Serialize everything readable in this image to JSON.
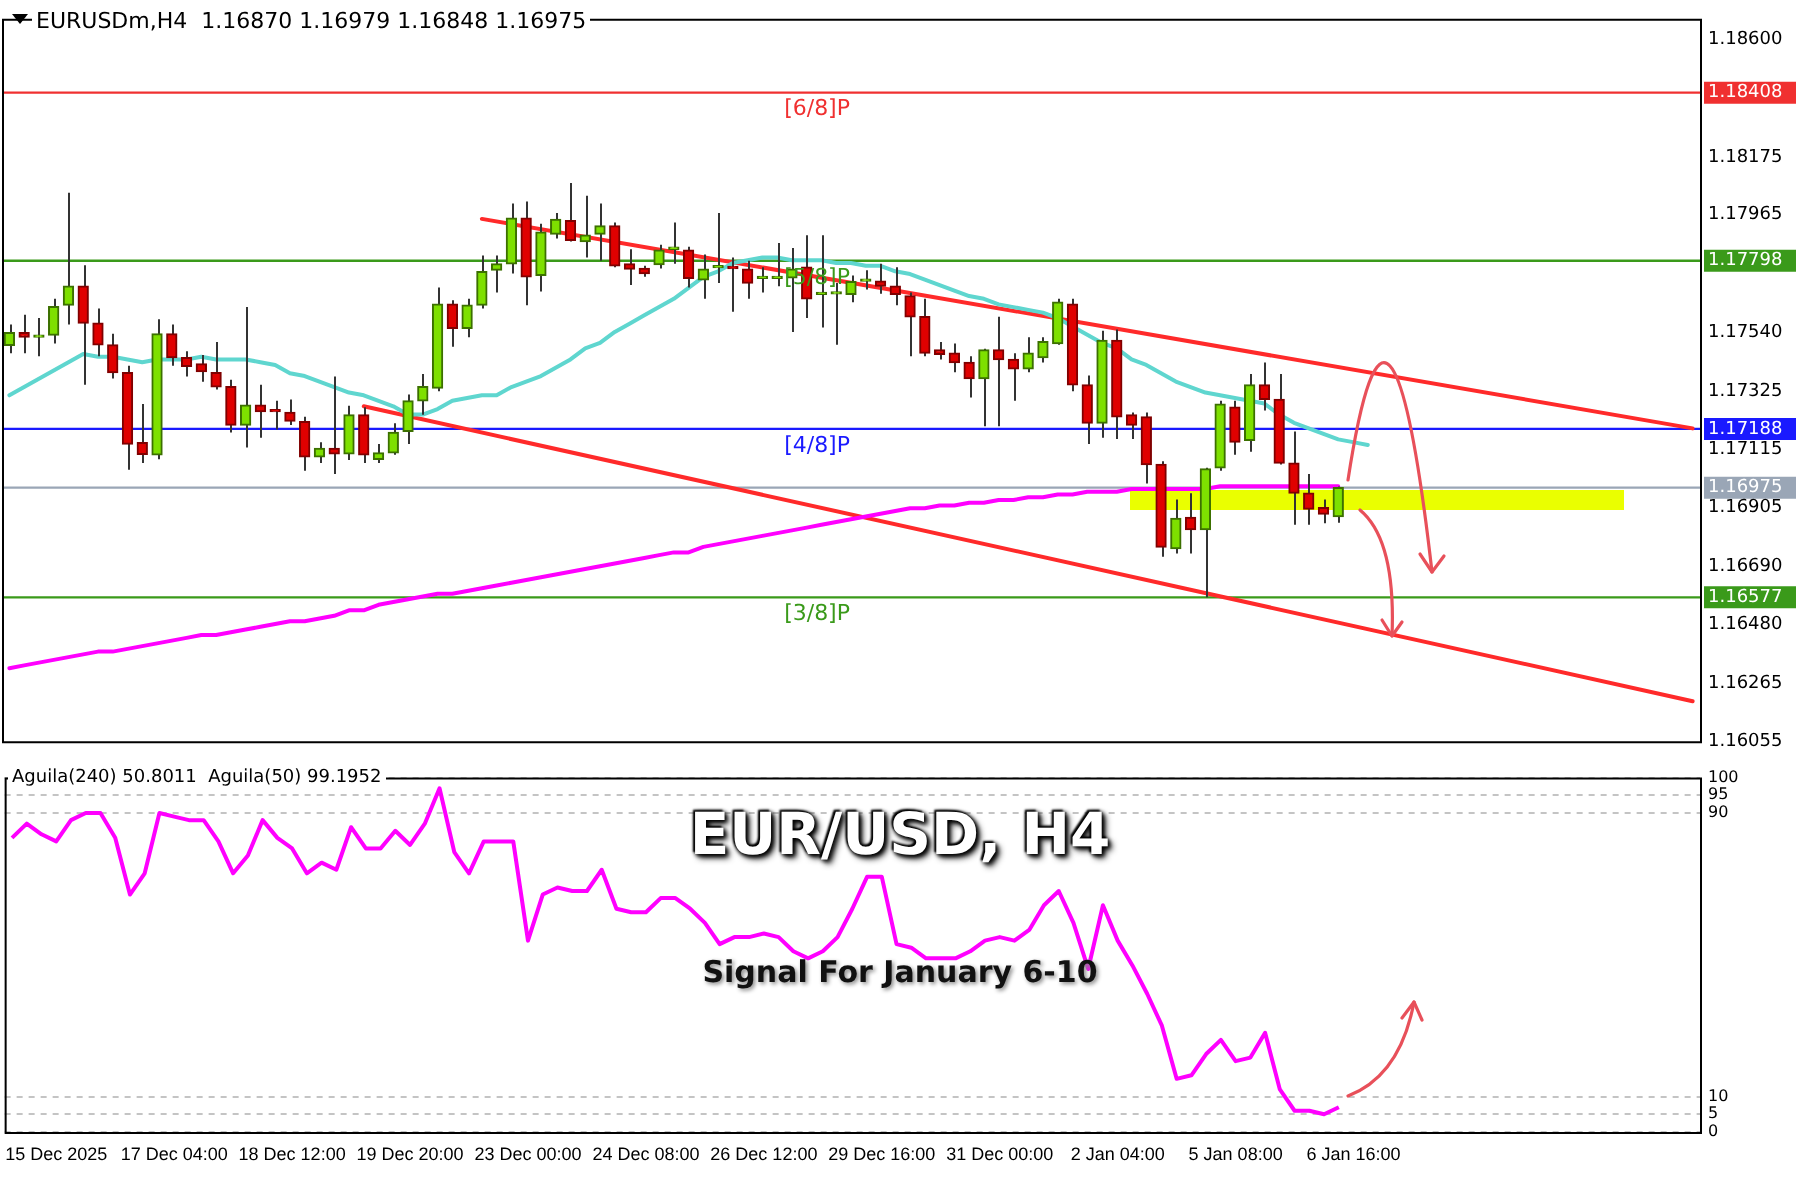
{
  "chart_data": [
    {
      "type": "candlestick",
      "title": "EURUSDm,H4  1.16870 1.16979 1.16848 1.16975",
      "categories": [
        null,
        null,
        null,
        null,
        null,
        null,
        null,
        null,
        null,
        null,
        null,
        null,
        null,
        null,
        null,
        null,
        null,
        null,
        null,
        null,
        null,
        null,
        null,
        null,
        null,
        null,
        null,
        null,
        null,
        null,
        null,
        null,
        null,
        null,
        null,
        null,
        null,
        null,
        null,
        null,
        null,
        null,
        null,
        null,
        null,
        null,
        null,
        null,
        null,
        null,
        null,
        null,
        null,
        null,
        null,
        null,
        null,
        null,
        null,
        null,
        null,
        null,
        null,
        null,
        null,
        null,
        null,
        null,
        null,
        null,
        null,
        null,
        null,
        null,
        null,
        null,
        null,
        null,
        null,
        null,
        null,
        null,
        null,
        null,
        null,
        null,
        null,
        null,
        null,
        null,
        null,
        null,
        null,
        null,
        null,
        null,
        null,
        null,
        null,
        null,
        null,
        null,
        null,
        null,
        null,
        null,
        null,
        null,
        null,
        null,
        null,
        null,
        null,
        null,
        null
      ],
      "ohlc": [
        [
          1.17491,
          1.17567,
          1.17463,
          1.17537
        ],
        [
          1.17537,
          1.17602,
          1.17463,
          1.17521
        ],
        [
          1.17521,
          1.1759,
          1.17452,
          1.17526
        ],
        [
          1.17528,
          1.1766,
          1.17498,
          1.17632
        ],
        [
          1.17637,
          1.18045,
          1.17567,
          1.17706
        ],
        [
          1.17706,
          1.17782,
          1.17348,
          1.17572
        ],
        [
          1.17572,
          1.17625,
          1.17452,
          1.17493
        ],
        [
          1.17493,
          1.17533,
          1.17371,
          1.17392
        ],
        [
          1.17392,
          1.17417,
          1.1704,
          1.17133
        ],
        [
          1.17138,
          1.17278,
          1.17064,
          1.17096
        ],
        [
          1.17094,
          1.17586,
          1.17078,
          1.17533
        ],
        [
          1.17533,
          1.17567,
          1.17417,
          1.17447
        ],
        [
          1.17447,
          1.1747,
          1.17378,
          1.17415
        ],
        [
          1.17424,
          1.17456,
          1.17359,
          1.17396
        ],
        [
          1.17392,
          1.17503,
          1.17331,
          1.17341
        ],
        [
          1.17341,
          1.17366,
          1.17175,
          1.17202
        ],
        [
          1.17202,
          1.1763,
          1.17121,
          1.17274
        ],
        [
          1.17274,
          1.17348,
          1.17156,
          1.17251
        ],
        [
          1.17253,
          1.1729,
          1.17186,
          1.17251
        ],
        [
          1.17248,
          1.17295,
          1.17202,
          1.17216
        ],
        [
          1.17214,
          1.17232,
          1.17036,
          1.17087
        ],
        [
          1.17087,
          1.1714,
          1.17064,
          1.17117
        ],
        [
          1.17117,
          1.17378,
          1.17024,
          1.17098
        ],
        [
          1.17098,
          1.17272,
          1.17075,
          1.17239
        ],
        [
          1.17239,
          1.17267,
          1.17064,
          1.17094
        ],
        [
          1.17078,
          1.17133,
          1.17064,
          1.17101
        ],
        [
          1.17101,
          1.17209,
          1.17094,
          1.17175
        ],
        [
          1.17179,
          1.17313,
          1.17133,
          1.1729
        ],
        [
          1.1729,
          1.17387,
          1.17239,
          1.17341
        ],
        [
          1.17336,
          1.17701,
          1.17325,
          1.17641
        ],
        [
          1.17641,
          1.17655,
          1.17486,
          1.17553
        ],
        [
          1.17553,
          1.1766,
          1.17521,
          1.17637
        ],
        [
          1.17637,
          1.17817,
          1.17625,
          1.17759
        ],
        [
          1.17764,
          1.17817,
          1.17683,
          1.17787
        ],
        [
          1.17787,
          1.18006,
          1.17752,
          1.17953
        ],
        [
          1.17953,
          1.18013,
          1.17637,
          1.1774
        ],
        [
          1.17745,
          1.17932,
          1.17687,
          1.17902
        ],
        [
          1.17895,
          1.17971,
          1.17879,
          1.17948
        ],
        [
          1.17944,
          1.1808,
          1.17868,
          1.17872
        ],
        [
          1.17868,
          1.18034,
          1.1781,
          1.17891
        ],
        [
          1.17895,
          1.18006,
          1.17798,
          1.17925
        ],
        [
          1.17925,
          1.17937,
          1.17775,
          1.1778
        ],
        [
          1.17787,
          1.1784,
          1.1771,
          1.17768
        ],
        [
          1.1777,
          1.1778,
          1.1774,
          1.17752
        ],
        [
          1.17784,
          1.17856,
          1.1777,
          1.17837
        ],
        [
          1.1784,
          1.17937,
          1.17787,
          1.17844
        ],
        [
          1.17837,
          1.17849,
          1.17701,
          1.17734
        ],
        [
          1.17729,
          1.17821,
          1.1766,
          1.17768
        ],
        [
          1.17773,
          1.17971,
          1.17717,
          1.17777
        ],
        [
          1.17775,
          1.1781,
          1.17613,
          1.1777
        ],
        [
          1.17768,
          1.17798,
          1.1766,
          1.17717
        ],
        [
          1.17734,
          1.17775,
          1.17683,
          1.17736
        ],
        [
          1.17734,
          1.17863,
          1.17706,
          1.17738
        ],
        [
          1.17736,
          1.17844,
          1.1754,
          1.17768
        ],
        [
          1.17775,
          1.17891,
          1.1759,
          1.1766
        ],
        [
          1.17676,
          1.17891,
          1.17556,
          1.17683
        ],
        [
          1.17678,
          1.17717,
          1.17493,
          1.17683
        ],
        [
          1.17676,
          1.17745,
          1.17648,
          1.17722
        ],
        [
          1.17724,
          1.17764,
          1.17694,
          1.17729
        ],
        [
          1.17724,
          1.17787,
          1.17678,
          1.17706
        ],
        [
          1.17706,
          1.17775,
          1.17637,
          1.17676
        ],
        [
          1.17671,
          1.17683,
          1.17452,
          1.17595
        ],
        [
          1.17595,
          1.1766,
          1.17452,
          1.17463
        ],
        [
          1.17475,
          1.17503,
          1.1744,
          1.17459
        ],
        [
          1.17463,
          1.17498,
          1.17394,
          1.17429
        ],
        [
          1.17429,
          1.17452,
          1.17302,
          1.17371
        ],
        [
          1.17371,
          1.17479,
          1.17198,
          1.17475
        ],
        [
          1.17475,
          1.17595,
          1.17198,
          1.1744
        ],
        [
          1.1744,
          1.17463,
          1.1729,
          1.17406
        ],
        [
          1.17406,
          1.17521,
          1.17394,
          1.17463
        ],
        [
          1.17447,
          1.17521,
          1.17429,
          1.17505
        ],
        [
          1.17498,
          1.1766,
          1.17493,
          1.17648
        ],
        [
          1.17641,
          1.1766,
          1.17325,
          1.17348
        ],
        [
          1.17348,
          1.17382,
          1.17133,
          1.17209
        ],
        [
          1.17209,
          1.17544,
          1.17156,
          1.17509
        ],
        [
          1.17509,
          1.17549,
          1.17151,
          1.17232
        ],
        [
          1.17239,
          1.17248,
          1.17151,
          1.17202
        ],
        [
          1.17232,
          1.17248,
          1.1699,
          1.17059
        ],
        [
          1.17059,
          1.17071,
          1.16724,
          1.16759
        ],
        [
          1.16754,
          1.16932,
          1.16736,
          1.16863
        ],
        [
          1.16867,
          1.16955,
          1.16736,
          1.16823
        ],
        [
          1.16823,
          1.17047,
          1.16577,
          1.17043
        ],
        [
          1.17047,
          1.1729,
          1.17036,
          1.17278
        ],
        [
          1.17267,
          1.1729,
          1.17094,
          1.1714
        ],
        [
          1.17147,
          1.17387,
          1.17105,
          1.17348
        ],
        [
          1.17348,
          1.17429,
          1.17255,
          1.17295
        ],
        [
          1.17295,
          1.17387,
          1.17059,
          1.17064
        ],
        [
          1.17064,
          1.17179,
          1.1684,
          1.16955
        ],
        [
          1.16955,
          1.17024,
          1.1684,
          1.16897
        ],
        [
          1.16902,
          1.16932,
          1.16846,
          1.16879
        ],
        [
          1.1687,
          1.16979,
          1.16848,
          1.16975
        ],
        null,
        null,
        null,
        null,
        null,
        null,
        null,
        null,
        null,
        null,
        null,
        null,
        null,
        null,
        null,
        null,
        null,
        null,
        null,
        null,
        null,
        null,
        null,
        null
      ],
      "series": [
        {
          "type": "line",
          "color": "#5fd6cf",
          "values": [
            1.1731,
            1.1734,
            1.1737,
            1.174,
            1.1743,
            1.1746,
            1.1745,
            1.1745,
            1.1744,
            1.1743,
            1.1744,
            1.1744,
            1.1744,
            1.1745,
            1.1744,
            1.1744,
            1.1744,
            1.1743,
            1.1742,
            1.1739,
            1.1738,
            1.1736,
            1.1734,
            1.1732,
            1.1731,
            1.1729,
            1.1727,
            1.1724,
            1.1724,
            1.1726,
            1.1729,
            1.173,
            1.1731,
            1.1731,
            1.1734,
            1.1736,
            1.1738,
            1.1741,
            1.1744,
            1.1748,
            1.175,
            1.1754,
            1.1757,
            1.176,
            1.1763,
            1.1766,
            1.177,
            1.1774,
            1.1776,
            1.1779,
            1.178,
            1.1781,
            1.1781,
            1.178,
            1.178,
            1.178,
            1.1779,
            1.1779,
            1.1778,
            1.1778,
            1.1776,
            1.1775,
            1.1773,
            1.1771,
            1.1769,
            1.1767,
            1.1766,
            1.1764,
            1.1763,
            1.1762,
            1.1761,
            1.1759,
            1.1756,
            1.1753,
            1.175,
            1.1748,
            1.1744,
            1.1742,
            1.1739,
            1.1736,
            1.1734,
            1.1732,
            1.1731,
            1.173,
            1.1729,
            1.1728,
            1.1724,
            1.1721,
            1.1719,
            1.1717,
            1.1715,
            1.1714,
            1.1713,
            null,
            null,
            null,
            null,
            null,
            null,
            null,
            null,
            null,
            null,
            null,
            null,
            null,
            null,
            null,
            null,
            null,
            null,
            null,
            null,
            null,
            null
          ]
        },
        {
          "type": "line",
          "color": "#ff00ff",
          "values": [
            1.1632,
            1.1633,
            1.1634,
            1.1635,
            1.1636,
            1.1637,
            1.1638,
            1.1638,
            1.1639,
            1.164,
            1.1641,
            1.1642,
            1.1643,
            1.1644,
            1.1644,
            1.1645,
            1.1646,
            1.1647,
            1.1648,
            1.1649,
            1.1649,
            1.165,
            1.1651,
            1.1653,
            1.1653,
            1.1655,
            1.1656,
            1.1657,
            1.1658,
            1.1659,
            1.1659,
            1.166,
            1.1661,
            1.1662,
            1.1663,
            1.1664,
            1.1665,
            1.1666,
            1.1667,
            1.1668,
            1.1669,
            1.167,
            1.1671,
            1.1672,
            1.1673,
            1.1674,
            1.1674,
            1.1676,
            1.1677,
            1.1678,
            1.1679,
            1.168,
            1.1681,
            1.1682,
            1.1683,
            1.1684,
            1.1685,
            1.1686,
            1.1687,
            1.1688,
            1.1689,
            1.169,
            1.169,
            1.1691,
            1.1691,
            1.1692,
            1.1692,
            1.1693,
            1.1693,
            1.1694,
            1.1694,
            1.1695,
            1.1695,
            1.1696,
            1.1696,
            1.1696,
            1.1697,
            1.1697,
            1.1697,
            1.1697,
            1.1697,
            1.1697,
            1.1698,
            1.1698,
            1.1698,
            1.1698,
            1.1698,
            1.1698,
            1.1698,
            1.1698,
            1.1698,
            null,
            null,
            null,
            null,
            null,
            null,
            null,
            null,
            null,
            null,
            null,
            null,
            null,
            null,
            null,
            null,
            null,
            null,
            null,
            null,
            null,
            null,
            null,
            null
          ]
        },
        {
          "type": "line",
          "color": "#ff2a2a",
          "values": [
            null,
            null,
            null,
            null,
            null,
            null,
            null,
            null,
            null,
            null,
            null,
            null,
            null,
            null,
            null,
            null,
            null,
            null,
            null,
            null,
            null,
            null,
            null,
            null,
            null,
            null,
            null,
            null,
            null,
            null,
            null,
            null,
            1.1795,
            null,
            null,
            null,
            null,
            null,
            null,
            null,
            null,
            null,
            null,
            null,
            null,
            null,
            null,
            null,
            null,
            null,
            null,
            null,
            null,
            null,
            null,
            null,
            null,
            null,
            null,
            null,
            null,
            null,
            null,
            null,
            null,
            null,
            null,
            null,
            null,
            null,
            null,
            null,
            null,
            null,
            null,
            null,
            null,
            null,
            null,
            null,
            null,
            null,
            null,
            null,
            null,
            null,
            null,
            null,
            null,
            null,
            null,
            null,
            null,
            null,
            null,
            null,
            null,
            null,
            null,
            null,
            null,
            null,
            null,
            null,
            null,
            null,
            null,
            null,
            null,
            null,
            null,
            null,
            null,
            null,
            1.1719
          ]
        },
        {
          "type": "line",
          "color": "#ff2a2a",
          "values": [
            null,
            null,
            null,
            null,
            null,
            null,
            null,
            null,
            null,
            null,
            null,
            null,
            null,
            null,
            null,
            null,
            null,
            null,
            null,
            null,
            null,
            null,
            null,
            null,
            1.1727,
            null,
            null,
            null,
            null,
            null,
            null,
            null,
            null,
            null,
            null,
            null,
            null,
            null,
            null,
            null,
            null,
            null,
            null,
            null,
            null,
            null,
            null,
            null,
            null,
            null,
            null,
            null,
            null,
            null,
            null,
            null,
            null,
            null,
            null,
            null,
            null,
            null,
            null,
            null,
            null,
            null,
            null,
            null,
            null,
            null,
            null,
            null,
            null,
            null,
            null,
            null,
            null,
            null,
            null,
            null,
            null,
            null,
            null,
            null,
            null,
            null,
            null,
            null,
            null,
            null,
            null,
            null,
            null,
            null,
            null,
            null,
            null,
            null,
            null,
            null,
            null,
            null,
            null,
            null,
            null,
            null,
            null,
            null,
            null,
            null,
            null,
            null,
            null,
            null,
            1.162
          ]
        }
      ],
      "ylim": [
        1.16055,
        1.18676
      ],
      "yticks": [
        1.16055,
        1.16265,
        {
          "value": 1.1648,
          "label": "1.16480"
        },
        1.16577,
        {
          "value": 1.1669,
          "label": "1.16690"
        },
        1.16905,
        1.16975,
        1.17115,
        1.17188,
        1.17325,
        {
          "value": 1.1754,
          "label": "1.17540"
        },
        1.17798,
        1.17965,
        1.18175,
        1.18408,
        {
          "value": 1.186,
          "label": "1.18600"
        }
      ],
      "ref_lines": [
        {
          "axis": "y",
          "value": 1.18408,
          "label": "[6/8]P",
          "color": "#f03030"
        },
        {
          "axis": "y",
          "value": 1.17798,
          "label": "[5/8]P",
          "color": "#3a9a1a"
        },
        {
          "axis": "y",
          "value": 1.17188,
          "label": "[4/8]P",
          "color": "#1a1aff"
        },
        {
          "axis": "y",
          "value": 1.16975,
          "label": null,
          "color": "#9aa6b6"
        },
        {
          "axis": "y",
          "value": 1.16577,
          "label": "[3/8]P",
          "color": "#3a9a1a"
        }
      ],
      "tick_labels": "y",
      "grid": false,
      "legend": false,
      "marker": "none"
    },
    {
      "type": "line",
      "title": "EUR/USD, H4",
      "subtitle": "Signal For January 6-10",
      "annotations": [
        "Aguila(240) 50.8011  Aguila(50) 99.1952"
      ],
      "categories": [
        null,
        null,
        null,
        "15 Dec 2025",
        null,
        null,
        null,
        null,
        null,
        null,
        null,
        "17 Dec 04:00",
        null,
        null,
        null,
        null,
        null,
        null,
        null,
        "18 Dec 12:00",
        null,
        null,
        null,
        null,
        null,
        null,
        null,
        "19 Dec 20:00",
        null,
        null,
        null,
        null,
        null,
        null,
        null,
        "23 Dec 00:00",
        null,
        null,
        null,
        null,
        null,
        null,
        null,
        "24 Dec 08:00",
        null,
        null,
        null,
        null,
        null,
        null,
        null,
        "26 Dec 12:00",
        null,
        null,
        null,
        null,
        null,
        null,
        null,
        "29 Dec 16:00",
        null,
        null,
        null,
        null,
        null,
        null,
        null,
        "31 Dec 00:00",
        null,
        null,
        null,
        null,
        null,
        null,
        null,
        "2 Jan 04:00",
        null,
        null,
        null,
        null,
        null,
        null,
        null,
        "5 Jan 08:00",
        null,
        null,
        null,
        null,
        null,
        null,
        null,
        "6 Jan 16:00",
        null,
        null,
        null,
        null,
        null,
        null,
        null,
        null,
        null,
        null,
        null,
        null,
        null,
        null,
        null,
        null,
        null,
        null,
        null,
        null,
        null,
        null,
        null
      ],
      "values": [
        83,
        87,
        84,
        82,
        88,
        90,
        90,
        83,
        67,
        73,
        90,
        89,
        88,
        88,
        82,
        73,
        78,
        88,
        83,
        80,
        73,
        76,
        74,
        86,
        80,
        80,
        85,
        81,
        87,
        97,
        79,
        73,
        82,
        82,
        82,
        54,
        67,
        69,
        68,
        68,
        74,
        63,
        62,
        62,
        66,
        66,
        63,
        59,
        53,
        55,
        55,
        56,
        55,
        51,
        49,
        51,
        55,
        63,
        72,
        72,
        53,
        52,
        49,
        49,
        49,
        51,
        54,
        55,
        54,
        57,
        64,
        68,
        59,
        46,
        64,
        54,
        47,
        39,
        30,
        15,
        16,
        22,
        26,
        20,
        21,
        28,
        12,
        6,
        6,
        5,
        7,
        null,
        null,
        null,
        null,
        null,
        null,
        null,
        null,
        null,
        null,
        null,
        null,
        null,
        null,
        null,
        null,
        null,
        null,
        null,
        null,
        null,
        null,
        null,
        null
      ],
      "color": "#ff00ff",
      "ylim": [
        0,
        100
      ],
      "yticks": [
        0,
        5,
        10,
        90,
        95,
        100
      ],
      "grid": "y",
      "legend": false,
      "marker": "none"
    }
  ]
}
